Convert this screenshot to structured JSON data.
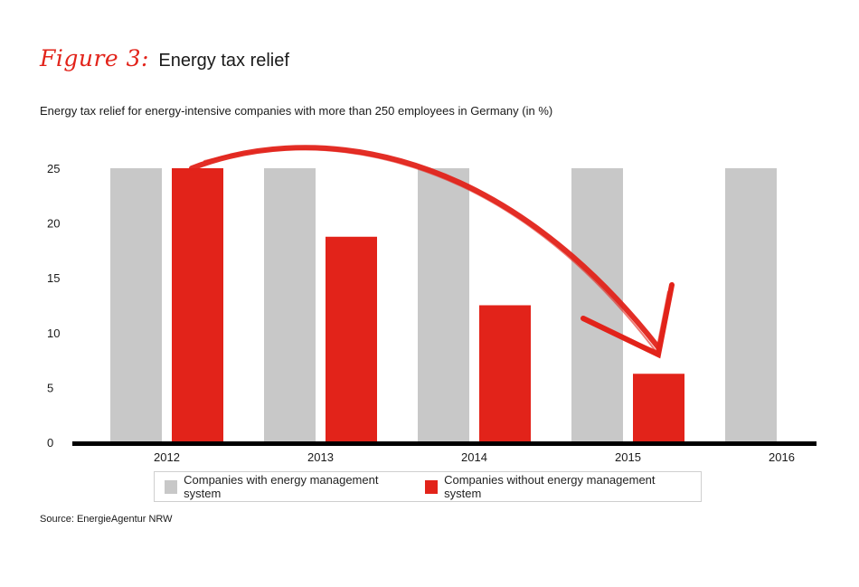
{
  "figure": {
    "label": "Figure 3:",
    "title": "Energy tax relief"
  },
  "source": "Source: EnergieAgentur NRW",
  "colors": {
    "with_ems": "#c8c8c8",
    "without_ems": "#e2231a",
    "axis": "#000000"
  },
  "chart_data": {
    "type": "bar",
    "title": "Energy tax relief for energy-intensive companies with more than 250 employees in Germany (in %)",
    "xlabel": "",
    "ylabel": "",
    "categories": [
      "2012",
      "2013",
      "2014",
      "2015",
      "2016"
    ],
    "series": [
      {
        "name": "Companies with energy management system",
        "values": [
          25,
          25,
          25,
          25,
          25
        ]
      },
      {
        "name": "Companies without energy management system",
        "values": [
          25,
          18.75,
          12.5,
          6.25,
          0
        ]
      }
    ],
    "ylim": [
      0,
      25
    ],
    "yticks": [
      0,
      5,
      10,
      15,
      20,
      25
    ],
    "grid": false,
    "legend_position": "bottom",
    "annotations": [
      "decreasing-trend-arrow"
    ]
  }
}
